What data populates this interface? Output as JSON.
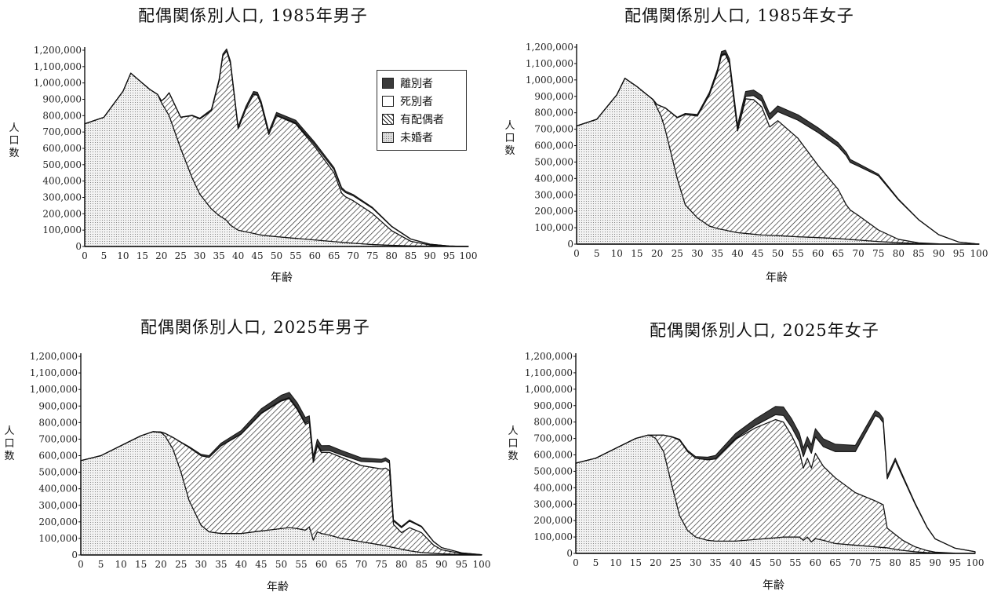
{
  "colors": {
    "never_married": "#eeeeee",
    "married": "#ffffff",
    "widowed": "#ffffff",
    "divorced": "#3a3a3a",
    "line": "#111111"
  },
  "panels": [
    {
      "title": "配偶関係別人口, 1985年男子",
      "ylabel": [
        "人",
        "口",
        "数"
      ],
      "xlabel": "年齢"
    },
    {
      "title": "配偶関係別人口, 1985年女子",
      "ylabel": [
        "人",
        "口",
        "数"
      ],
      "xlabel": "年齢"
    },
    {
      "title": "配偶関係別人口, 2025年男子",
      "ylabel": [
        "人",
        "口",
        "数"
      ],
      "xlabel": "年齢"
    },
    {
      "title": "配偶関係別人口, 2025年女子",
      "ylabel": [
        "人",
        "口",
        "数"
      ],
      "xlabel": "年齢"
    }
  ],
  "legend": {
    "items": [
      "離別者",
      "死別者",
      "有配偶者",
      "未婚者"
    ]
  },
  "chart_data": [
    {
      "type": "area",
      "title": "配偶関係別人口, 1985年男子",
      "xlabel": "年齢",
      "ylabel": "人口数",
      "xlim": [
        0,
        100
      ],
      "ylim": [
        0,
        1200000
      ],
      "xticks": [
        "0",
        "5",
        "10",
        "15",
        "20",
        "25",
        "30",
        "35",
        "40",
        "45",
        "50",
        "55",
        "60",
        "65",
        "70",
        "75",
        "80",
        "85",
        "90",
        "95",
        "100"
      ],
      "yticks": [
        "0",
        "100,000",
        "200,000",
        "300,000",
        "400,000",
        "500,000",
        "600,000",
        "700,000",
        "800,000",
        "900,000",
        "1,000,000",
        "1,100,000",
        "1,200,000"
      ],
      "stacked": true,
      "x": [
        0,
        5,
        10,
        12,
        15,
        17,
        19,
        20,
        21,
        22,
        25,
        28,
        30,
        33,
        35,
        36,
        37,
        38,
        40,
        42,
        44,
        45,
        46,
        48,
        50,
        55,
        60,
        65,
        67,
        68,
        70,
        75,
        80,
        85,
        90,
        95,
        100
      ],
      "series": [
        {
          "name": "未婚者",
          "values": [
            750000,
            790000,
            950000,
            1060000,
            1000000,
            960000,
            930000,
            880000,
            840000,
            800000,
            600000,
            420000,
            320000,
            230000,
            190000,
            175000,
            160000,
            130000,
            100000,
            90000,
            80000,
            75000,
            70000,
            65000,
            60000,
            50000,
            40000,
            30000,
            26000,
            24000,
            20000,
            12000,
            7000,
            4000,
            2000,
            500,
            0
          ]
        },
        {
          "name": "有配偶者",
          "values": [
            0,
            0,
            0,
            0,
            0,
            0,
            0,
            10000,
            70000,
            140000,
            190000,
            380000,
            460000,
            600000,
            820000,
            990000,
            1035000,
            990000,
            620000,
            750000,
            850000,
            850000,
            800000,
            620000,
            740000,
            700000,
            570000,
            420000,
            300000,
            280000,
            260000,
            190000,
            90000,
            28000,
            7000,
            1500,
            0
          ]
        },
        {
          "name": "死別者",
          "values": [
            0,
            0,
            0,
            0,
            0,
            0,
            0,
            0,
            0,
            0,
            0,
            0,
            0,
            0,
            0,
            0,
            0,
            0,
            500,
            700,
            1000,
            1200,
            1500,
            2000,
            3000,
            6000,
            12000,
            20000,
            24000,
            26000,
            30000,
            32000,
            25000,
            13000,
            5000,
            1200,
            0
          ]
        },
        {
          "name": "離別者",
          "values": [
            0,
            0,
            0,
            0,
            0,
            0,
            0,
            0,
            0,
            500,
            1500,
            3000,
            5000,
            8000,
            10000,
            12000,
            13000,
            14000,
            15000,
            16000,
            17000,
            17000,
            17000,
            17000,
            17000,
            16000,
            14000,
            12000,
            10000,
            9000,
            8000,
            5000,
            3000,
            1500,
            500,
            100,
            0
          ]
        }
      ]
    },
    {
      "type": "area",
      "title": "配偶関係別人口, 1985年女子",
      "xlabel": "年齢",
      "ylabel": "人口数",
      "xlim": [
        0,
        100
      ],
      "ylim": [
        0,
        1200000
      ],
      "xticks": [
        "0",
        "5",
        "10",
        "15",
        "20",
        "25",
        "30",
        "35",
        "40",
        "45",
        "50",
        "55",
        "60",
        "65",
        "70",
        "75",
        "80",
        "85",
        "90",
        "95",
        "100"
      ],
      "yticks": [
        "0",
        "100,000",
        "200,000",
        "300,000",
        "400,000",
        "500,000",
        "600,000",
        "700,000",
        "800,000",
        "900,000",
        "1,000,000",
        "1,100,000",
        "1,200,000"
      ],
      "stacked": true,
      "x": [
        0,
        5,
        10,
        12,
        15,
        17,
        19,
        20,
        21,
        22,
        25,
        27,
        30,
        33,
        35,
        36,
        37,
        38,
        40,
        42,
        44,
        45,
        46,
        48,
        50,
        55,
        60,
        65,
        67,
        68,
        70,
        75,
        80,
        85,
        90,
        95,
        100
      ],
      "series": [
        {
          "name": "未婚者",
          "values": [
            720000,
            760000,
            910000,
            1010000,
            960000,
            920000,
            880000,
            830000,
            780000,
            700000,
            400000,
            240000,
            160000,
            110000,
            95000,
            90000,
            85000,
            80000,
            70000,
            65000,
            60000,
            58000,
            56000,
            54000,
            52000,
            45000,
            40000,
            34000,
            30000,
            28000,
            25000,
            16000,
            9000,
            4000,
            1500,
            400,
            0
          ]
        },
        {
          "name": "有配偶者",
          "values": [
            0,
            0,
            0,
            0,
            0,
            0,
            0,
            20000,
            60000,
            130000,
            370000,
            550000,
            620000,
            800000,
            950000,
            1060000,
            1070000,
            1020000,
            620000,
            820000,
            820000,
            800000,
            780000,
            660000,
            700000,
            600000,
            440000,
            300000,
            210000,
            180000,
            150000,
            70000,
            20000,
            4000,
            600,
            100,
            0
          ]
        },
        {
          "name": "死別者",
          "values": [
            0,
            0,
            0,
            0,
            0,
            0,
            0,
            0,
            0,
            0,
            0,
            0,
            1000,
            2000,
            4000,
            5000,
            6000,
            7000,
            10000,
            15000,
            25000,
            30000,
            35000,
            45000,
            55000,
            110000,
            200000,
            260000,
            300000,
            290000,
            300000,
            330000,
            240000,
            140000,
            55000,
            12000,
            0
          ]
        },
        {
          "name": "離別者",
          "values": [
            0,
            0,
            0,
            0,
            0,
            0,
            0,
            0,
            0,
            1000,
            3000,
            6000,
            9000,
            13000,
            16000,
            18000,
            20000,
            22000,
            26000,
            30000,
            33000,
            34000,
            34000,
            35000,
            35000,
            33000,
            29000,
            24000,
            20000,
            18000,
            16000,
            10000,
            5000,
            2000,
            600,
            100,
            0
          ]
        }
      ]
    },
    {
      "type": "area",
      "title": "配偶関係別人口, 2025年男子",
      "xlabel": "年齢",
      "ylabel": "人口数",
      "xlim": [
        0,
        100
      ],
      "ylim": [
        0,
        1200000
      ],
      "xticks": [
        "0",
        "5",
        "10",
        "15",
        "20",
        "25",
        "30",
        "35",
        "40",
        "45",
        "50",
        "55",
        "60",
        "65",
        "70",
        "75",
        "80",
        "85",
        "90",
        "95",
        "100"
      ],
      "yticks": [
        "0",
        "100,000",
        "200,000",
        "300,000",
        "400,000",
        "500,000",
        "600,000",
        "700,000",
        "800,000",
        "900,000",
        "1,000,000",
        "1,100,000",
        "1,200,000"
      ],
      "stacked": true,
      "x": [
        0,
        5,
        10,
        15,
        18,
        20,
        21,
        23,
        25,
        27,
        30,
        32,
        35,
        40,
        45,
        50,
        52,
        54,
        56,
        57,
        58,
        59,
        60,
        62,
        65,
        70,
        75,
        76,
        77,
        78,
        80,
        82,
        85,
        88,
        90,
        95,
        100
      ],
      "series": [
        {
          "name": "未婚者",
          "values": [
            570000,
            600000,
            660000,
            720000,
            745000,
            740000,
            720000,
            640000,
            500000,
            330000,
            180000,
            140000,
            130000,
            130000,
            145000,
            160000,
            165000,
            160000,
            150000,
            170000,
            90000,
            140000,
            130000,
            120000,
            100000,
            80000,
            60000,
            55000,
            50000,
            45000,
            35000,
            25000,
            15000,
            10000,
            7000,
            3000,
            1000
          ]
        },
        {
          "name": "有配偶者",
          "values": [
            0,
            0,
            0,
            0,
            0,
            3000,
            15000,
            70000,
            180000,
            320000,
            420000,
            450000,
            530000,
            600000,
            710000,
            770000,
            780000,
            720000,
            640000,
            630000,
            470000,
            520000,
            490000,
            500000,
            490000,
            460000,
            460000,
            470000,
            460000,
            140000,
            100000,
            140000,
            120000,
            50000,
            25000,
            5000,
            0
          ]
        },
        {
          "name": "死別者",
          "values": [
            0,
            0,
            0,
            0,
            0,
            0,
            0,
            0,
            0,
            0,
            0,
            0,
            1000,
            2000,
            3000,
            5000,
            6000,
            7000,
            8000,
            8000,
            7000,
            9000,
            10000,
            12000,
            15000,
            25000,
            40000,
            45000,
            45000,
            20000,
            30000,
            40000,
            35000,
            20000,
            12000,
            5000,
            1000
          ]
        },
        {
          "name": "離別者",
          "values": [
            0,
            0,
            0,
            0,
            0,
            0,
            0,
            500,
            2000,
            5000,
            8000,
            10000,
            15000,
            20000,
            25000,
            30000,
            32000,
            33000,
            33000,
            33000,
            30000,
            31000,
            30000,
            29000,
            27000,
            22000,
            18000,
            17000,
            16000,
            8000,
            7000,
            6000,
            4000,
            2000,
            1000,
            300,
            0
          ]
        }
      ]
    },
    {
      "type": "area",
      "title": "配偶関係別人口, 2025年女子",
      "xlabel": "年齢",
      "ylabel": "人口数",
      "xlim": [
        0,
        100
      ],
      "ylim": [
        0,
        1200000
      ],
      "xticks": [
        "0",
        "5",
        "10",
        "15",
        "20",
        "25",
        "30",
        "35",
        "40",
        "45",
        "50",
        "55",
        "60",
        "65",
        "70",
        "75",
        "80",
        "85",
        "90",
        "95",
        "100"
      ],
      "yticks": [
        "0",
        "100,000",
        "200,000",
        "300,000",
        "400,000",
        "500,000",
        "600,000",
        "700,000",
        "800,000",
        "900,000",
        "1,000,000",
        "1,100,000",
        "1,200,000"
      ],
      "stacked": true,
      "x": [
        0,
        5,
        10,
        15,
        18,
        19,
        20,
        22,
        24,
        26,
        28,
        30,
        33,
        35,
        40,
        45,
        50,
        52,
        54,
        56,
        57,
        58,
        59,
        60,
        62,
        65,
        70,
        75,
        76,
        77,
        78,
        80,
        82,
        85,
        88,
        90,
        95,
        100
      ],
      "series": [
        {
          "name": "未婚者",
          "values": [
            550000,
            580000,
            640000,
            700000,
            720000,
            715000,
            700000,
            620000,
            420000,
            230000,
            140000,
            100000,
            80000,
            75000,
            75000,
            85000,
            95000,
            100000,
            100000,
            100000,
            80000,
            100000,
            70000,
            90000,
            80000,
            60000,
            50000,
            40000,
            38000,
            36000,
            34000,
            25000,
            18000,
            10000,
            5000,
            3000,
            1000,
            200
          ]
        },
        {
          "name": "有配偶者",
          "values": [
            0,
            0,
            0,
            0,
            0,
            5000,
            20000,
            100000,
            290000,
            460000,
            480000,
            480000,
            490000,
            500000,
            620000,
            680000,
            720000,
            700000,
            620000,
            520000,
            440000,
            480000,
            450000,
            520000,
            450000,
            400000,
            320000,
            280000,
            270000,
            260000,
            120000,
            90000,
            60000,
            30000,
            12000,
            5000,
            500,
            0
          ]
        },
        {
          "name": "死別者",
          "values": [
            0,
            0,
            0,
            0,
            0,
            0,
            0,
            0,
            0,
            0,
            0,
            0,
            1000,
            2000,
            5000,
            15000,
            30000,
            40000,
            50000,
            60000,
            70000,
            80000,
            90000,
            100000,
            120000,
            160000,
            250000,
            520000,
            520000,
            500000,
            300000,
            450000,
            380000,
            260000,
            140000,
            80000,
            30000,
            10000
          ]
        },
        {
          "name": "離別者",
          "values": [
            0,
            0,
            0,
            0,
            0,
            0,
            0,
            500,
            2000,
            5000,
            8000,
            10000,
            15000,
            20000,
            30000,
            40000,
            50000,
            52000,
            52000,
            52000,
            52000,
            51000,
            50000,
            50000,
            48000,
            45000,
            38000,
            30000,
            28000,
            26000,
            20000,
            15000,
            10000,
            6000,
            3000,
            1500,
            400,
            100
          ]
        }
      ]
    }
  ]
}
